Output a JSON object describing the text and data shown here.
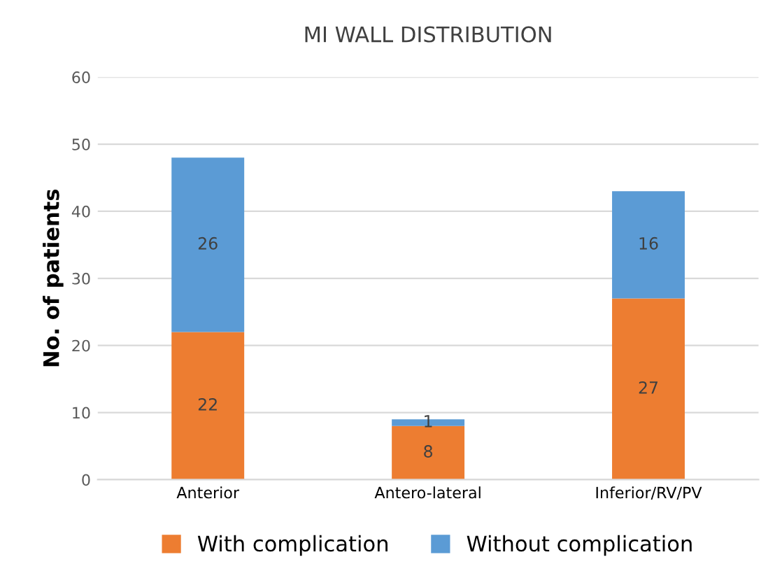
{
  "chart_data": {
    "type": "bar",
    "title": "MI WALL DISTRIBUTION",
    "ylabel": "No. of patients",
    "categories": [
      "Anterior",
      "Antero-lateral",
      "Inferior/RV/PV"
    ],
    "series": [
      {
        "name": "With complication",
        "color": "#ed7d31",
        "values": [
          22,
          8,
          27
        ]
      },
      {
        "name": "Without complication",
        "color": "#5b9bd5",
        "values": [
          26,
          1,
          16
        ]
      }
    ],
    "stacked": true,
    "ylim": [
      0,
      60
    ],
    "yticks": [
      0,
      10,
      20,
      30,
      40,
      50,
      60
    ],
    "grid": "y",
    "legend": "bottom",
    "data_labels": true
  }
}
